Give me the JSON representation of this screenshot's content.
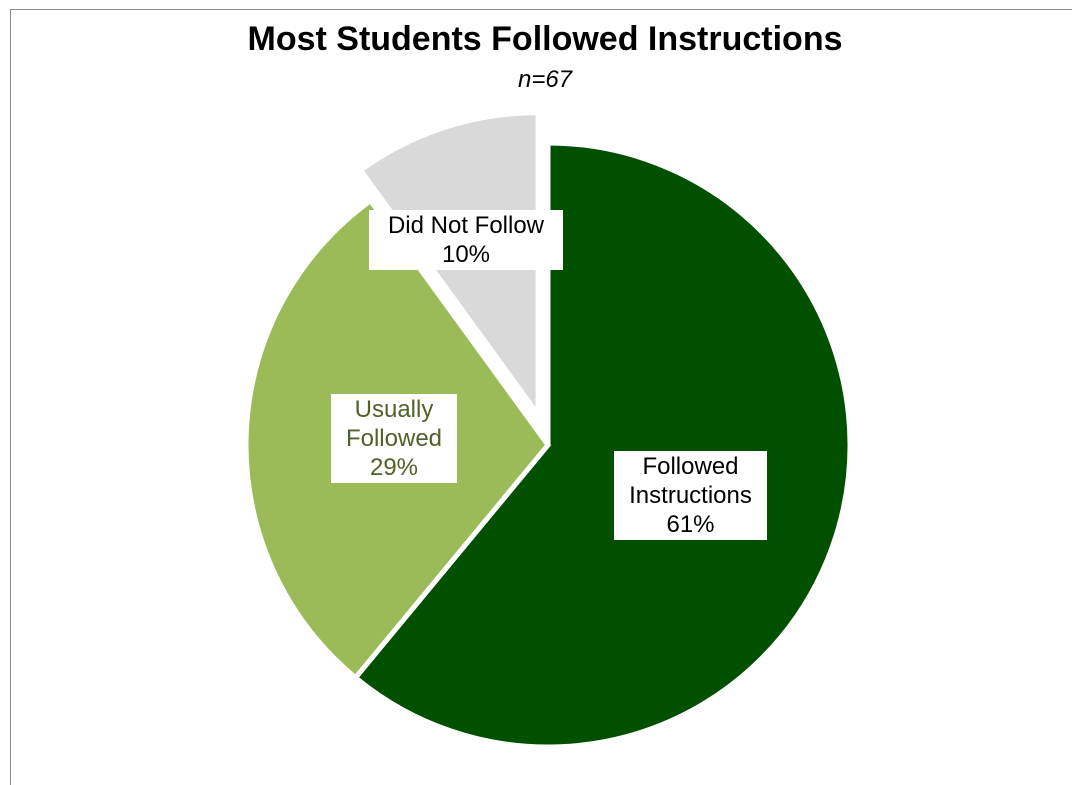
{
  "chart_data": {
    "type": "pie",
    "title": "Most Students Followed Instructions",
    "subtitle": "n=67",
    "slices": [
      {
        "label_lines": [
          "Followed",
          "Instructions"
        ],
        "value": 61,
        "value_text": "61%",
        "color": "#005000",
        "label_color": "#000000"
      },
      {
        "label_lines": [
          "Usually",
          "Followed"
        ],
        "value": 29,
        "value_text": "29%",
        "color": "#9bbb59",
        "label_color": "#4f6228"
      },
      {
        "label_lines": [
          "Did Not Follow"
        ],
        "value": 10,
        "value_text": "10%",
        "color": "#d9d9d9",
        "label_color": "#000000"
      }
    ],
    "legend": "none",
    "start_angle": "12 o'clock, clockwise",
    "exploded": "Did Not Follow"
  }
}
